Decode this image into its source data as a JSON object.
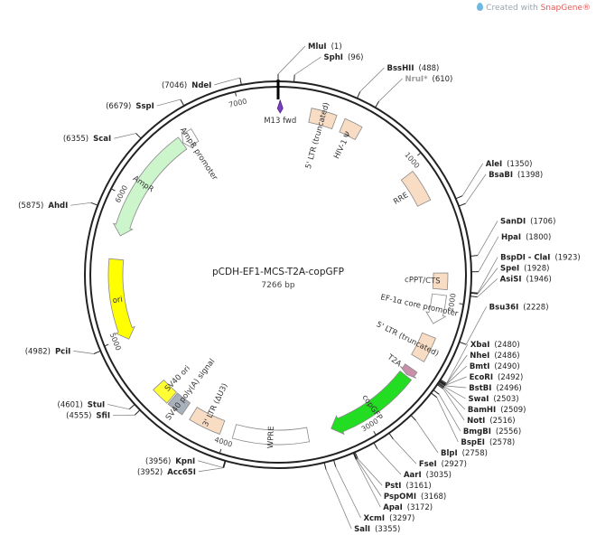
{
  "watermark": {
    "prefix": "Created with ",
    "brand": "SnapGene",
    "mark": "®"
  },
  "plasmid": {
    "name": "pCDH-EF1-MCS-T2A-copGFP",
    "length_label": "7266 bp",
    "length": 7266
  },
  "ticks": [
    {
      "pos": 1000,
      "label": "1000"
    },
    {
      "pos": 2000,
      "label": "2000"
    },
    {
      "pos": 3000,
      "label": "3000"
    },
    {
      "pos": 4000,
      "label": "4000"
    },
    {
      "pos": 5000,
      "label": "5000"
    },
    {
      "pos": 6000,
      "label": "6000"
    },
    {
      "pos": 7000,
      "label": "7000"
    }
  ],
  "sites": [
    {
      "name": "MluI",
      "pos": 1,
      "pos_label": "(1)",
      "side": "left",
      "color": "#222222"
    },
    {
      "name": "SphI",
      "pos": 96,
      "pos_label": "(96)",
      "side": "right",
      "color": "#222222"
    },
    {
      "name": "BssHII",
      "pos": 488,
      "pos_label": "(488)",
      "side": "right",
      "color": "#222222"
    },
    {
      "name": "NruI*",
      "pos": 610,
      "pos_label": "(610)",
      "side": "right",
      "color": "#9a9a9a"
    },
    {
      "name": "AleI",
      "pos": 1350,
      "pos_label": "(1350)",
      "side": "right",
      "color": "#222222"
    },
    {
      "name": "BsaBI",
      "pos": 1398,
      "pos_label": "(1398)",
      "side": "right",
      "color": "#222222"
    },
    {
      "name": "SanDI",
      "pos": 1706,
      "pos_label": "(1706)",
      "side": "right",
      "color": "#222222"
    },
    {
      "name": "HpaI",
      "pos": 1800,
      "pos_label": "(1800)",
      "side": "right",
      "color": "#222222"
    },
    {
      "name": "BspDI - ClaI",
      "pos": 1923,
      "pos_label": "(1923)",
      "side": "right",
      "color": "#222222"
    },
    {
      "name": "SpeI",
      "pos": 1928,
      "pos_label": "(1928)",
      "side": "right",
      "color": "#222222"
    },
    {
      "name": "AsiSI",
      "pos": 1946,
      "pos_label": "(1946)",
      "side": "right",
      "color": "#222222"
    },
    {
      "name": "Bsu36I",
      "pos": 2228,
      "pos_label": "(2228)",
      "side": "right",
      "color": "#222222"
    },
    {
      "name": "XbaI",
      "pos": 2480,
      "pos_label": "(2480)",
      "side": "right",
      "color": "#222222"
    },
    {
      "name": "NheI",
      "pos": 2486,
      "pos_label": "(2486)",
      "side": "right",
      "color": "#222222"
    },
    {
      "name": "BmtI",
      "pos": 2490,
      "pos_label": "(2490)",
      "side": "right",
      "color": "#222222"
    },
    {
      "name": "EcoRI",
      "pos": 2492,
      "pos_label": "(2492)",
      "side": "right",
      "color": "#222222"
    },
    {
      "name": "BstBI",
      "pos": 2496,
      "pos_label": "(2496)",
      "side": "right",
      "color": "#222222"
    },
    {
      "name": "SwaI",
      "pos": 2503,
      "pos_label": "(2503)",
      "side": "right",
      "color": "#222222"
    },
    {
      "name": "BamHI",
      "pos": 2509,
      "pos_label": "(2509)",
      "side": "right",
      "color": "#222222"
    },
    {
      "name": "NotI",
      "pos": 2516,
      "pos_label": "(2516)",
      "side": "right",
      "color": "#222222"
    },
    {
      "name": "BmgBI",
      "pos": 2556,
      "pos_label": "(2556)",
      "side": "right",
      "color": "#222222"
    },
    {
      "name": "BspEI",
      "pos": 2578,
      "pos_label": "(2578)",
      "side": "right",
      "color": "#222222"
    },
    {
      "name": "BlpI",
      "pos": 2758,
      "pos_label": "(2758)",
      "side": "right",
      "color": "#222222"
    },
    {
      "name": "FseI",
      "pos": 2927,
      "pos_label": "(2927)",
      "side": "right",
      "color": "#222222"
    },
    {
      "name": "AarI",
      "pos": 3035,
      "pos_label": "(3035)",
      "side": "right",
      "color": "#222222"
    },
    {
      "name": "PstI",
      "pos": 3161,
      "pos_label": "(3161)",
      "side": "right",
      "color": "#222222"
    },
    {
      "name": "PspOMI",
      "pos": 3168,
      "pos_label": "(3168)",
      "side": "right",
      "color": "#222222"
    },
    {
      "name": "ApaI",
      "pos": 3172,
      "pos_label": "(3172)",
      "side": "right",
      "color": "#222222"
    },
    {
      "name": "XcmI",
      "pos": 3297,
      "pos_label": "(3297)",
      "side": "right",
      "color": "#222222"
    },
    {
      "name": "SalI",
      "pos": 3355,
      "pos_label": "(3355)",
      "side": "right",
      "color": "#222222"
    },
    {
      "name": "KpnI",
      "pos": 3956,
      "pos_label": "(3956)",
      "side": "left",
      "color": "#222222"
    },
    {
      "name": "Acc65I",
      "pos": 3952,
      "pos_label": "(3952)",
      "side": "left",
      "color": "#222222"
    },
    {
      "name": "StuI",
      "pos": 4601,
      "pos_label": "(4601)",
      "side": "left",
      "color": "#222222"
    },
    {
      "name": "SfiI",
      "pos": 4555,
      "pos_label": "(4555)",
      "side": "left",
      "color": "#222222"
    },
    {
      "name": "PciI",
      "pos": 4982,
      "pos_label": "(4982)",
      "side": "left",
      "color": "#222222"
    },
    {
      "name": "AhdI",
      "pos": 5875,
      "pos_label": "(5875)",
      "side": "left",
      "color": "#222222"
    },
    {
      "name": "ScaI",
      "pos": 6355,
      "pos_label": "(6355)",
      "side": "left",
      "color": "#222222"
    },
    {
      "name": "SspI",
      "pos": 6679,
      "pos_label": "(6679)",
      "side": "left",
      "color": "#222222"
    },
    {
      "name": "NdeI",
      "pos": 7046,
      "pos_label": "(7046)",
      "side": "left",
      "color": "#222222"
    }
  ],
  "features": [
    {
      "name": "M13 fwd",
      "start": 15,
      "end": 60,
      "direction": "forward",
      "color": "#7b3fbf",
      "kind": "primer"
    },
    {
      "name": "5' LTR (truncated)",
      "start": 230,
      "end": 410,
      "direction": "none",
      "color": "#f8dcc4",
      "kind": "box"
    },
    {
      "name": "HIV-1 Ψ",
      "start": 470,
      "end": 600,
      "direction": "none",
      "color": "#f8dcc4",
      "kind": "box"
    },
    {
      "name": "RRE",
      "start": 1060,
      "end": 1290,
      "direction": "none",
      "color": "#f8dcc4",
      "kind": "box"
    },
    {
      "name": "cPPT/CTS",
      "start": 1805,
      "end": 1920,
      "direction": "none",
      "color": "#f8dcc4",
      "kind": "box"
    },
    {
      "name": "EF-1α core promoter",
      "start": 1960,
      "end": 2170,
      "direction": "forward",
      "color": "#ffffff",
      "kind": "arrow"
    },
    {
      "name": "5' LTR (truncated)",
      "start": 2260,
      "end": 2440,
      "direction": "none",
      "color": "#f8dcc4",
      "kind": "box"
    },
    {
      "name": "T2A",
      "start": 2525,
      "end": 2580,
      "direction": "forward",
      "color": "#c78fa8",
      "kind": "arrow"
    },
    {
      "name": "copGFP",
      "start": 2590,
      "end": 3250,
      "direction": "forward",
      "color": "#22dd22",
      "kind": "arrow"
    },
    {
      "name": "WPRE",
      "start": 3420,
      "end": 3950,
      "direction": "none",
      "color": "#ffffff",
      "kind": "box"
    },
    {
      "name": "3' LTR (ΔU3)",
      "start": 4040,
      "end": 4270,
      "direction": "none",
      "color": "#f8dcc4",
      "kind": "box"
    },
    {
      "name": "SV40 poly(A) signal",
      "start": 4330,
      "end": 4450,
      "direction": "none",
      "color": "#a8b0bb",
      "kind": "box"
    },
    {
      "name": "SV40 ori",
      "start": 4460,
      "end": 4590,
      "direction": "none",
      "color": "#ffff33",
      "kind": "box"
    },
    {
      "name": "ori",
      "start": 4980,
      "end": 5560,
      "direction": "reverse",
      "color": "#ffff00",
      "kind": "arrow"
    },
    {
      "name": "AmpR",
      "start": 5730,
      "end": 6540,
      "direction": "reverse",
      "color": "#ccf5cc",
      "kind": "arrow"
    },
    {
      "name": "AmpR promoter",
      "start": 6545,
      "end": 6645,
      "direction": "reverse",
      "color": "#ffffff",
      "kind": "arrow"
    }
  ]
}
